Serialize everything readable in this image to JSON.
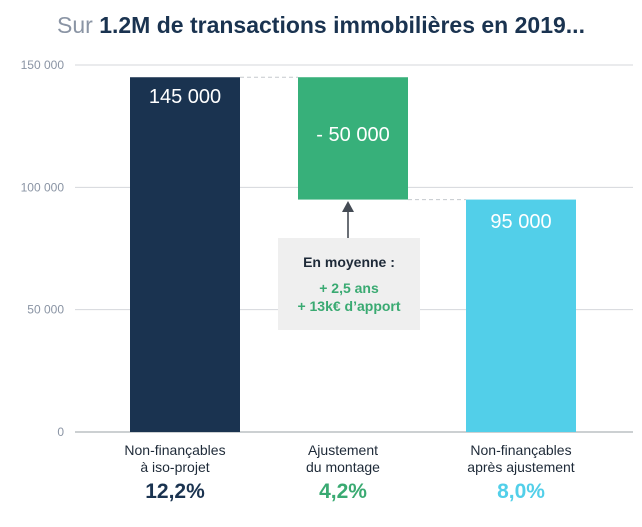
{
  "title": {
    "prefix": "Sur ",
    "main": "1.2M de transactions immobilières en 2019..."
  },
  "colors": {
    "navy": "#1a3350",
    "green": "#37b07a",
    "cyan": "#52cfe9",
    "pct_navy": "#1a3350",
    "pct_green": "#3aaa72",
    "pct_cyan": "#52cfe9"
  },
  "chart_data": {
    "type": "bar",
    "subtype": "waterfall",
    "categories": [
      "Non-finançables\nà iso-projet",
      "Ajustement\ndu montage",
      "Non-finançables\naprès ajustement"
    ],
    "bars": [
      {
        "start": 0,
        "end": 145000,
        "label": "145 000",
        "color": "navy",
        "pct": "12,2%"
      },
      {
        "start": 95000,
        "end": 145000,
        "label": "- 50 000",
        "color": "green",
        "pct": "4,2%"
      },
      {
        "start": 0,
        "end": 95000,
        "label": "95 000",
        "color": "cyan",
        "pct": "8,0%"
      }
    ],
    "ylim": [
      0,
      150000
    ],
    "yticks": [
      0,
      50000,
      100000,
      150000
    ],
    "ytick_labels": [
      "0",
      "50 000",
      "100 000",
      "150 000"
    ],
    "grid": true
  },
  "callout": {
    "title": "En moyenne :",
    "line1": "+ 2,5 ans",
    "line2": "+ 13k€ d’apport"
  }
}
